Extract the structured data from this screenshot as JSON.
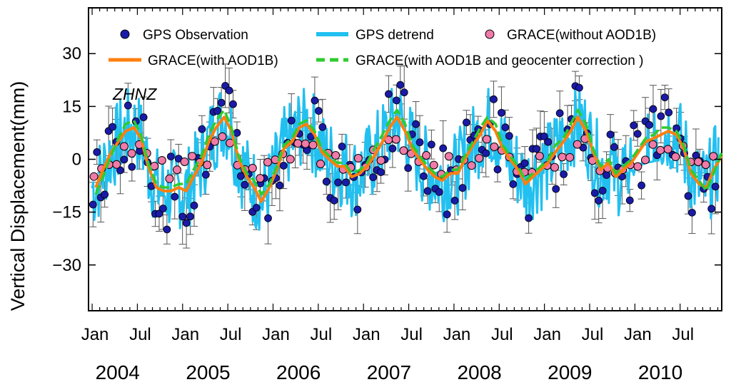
{
  "chart_data": {
    "type": "line",
    "station_label": "ZHNZ",
    "ylabel": "Vertical Displacement(mm)",
    "ylim": [
      -43,
      43
    ],
    "xlim": [
      2003.96,
      2010.96
    ],
    "yticks": [
      {
        "value": 30,
        "label": "30"
      },
      {
        "value": 15,
        "label": "15"
      },
      {
        "value": 0,
        "label": "0"
      },
      {
        "value": -15,
        "label": "−15"
      },
      {
        "value": -30,
        "label": "−30"
      }
    ],
    "month_ticks": [
      {
        "t": 2004.0,
        "label": "Jan"
      },
      {
        "t": 2004.5,
        "label": "Jul"
      },
      {
        "t": 2005.0,
        "label": "Jan"
      },
      {
        "t": 2005.5,
        "label": "Jul"
      },
      {
        "t": 2006.0,
        "label": "Jan"
      },
      {
        "t": 2006.5,
        "label": "Jul"
      },
      {
        "t": 2007.0,
        "label": "Jan"
      },
      {
        "t": 2007.5,
        "label": "Jul"
      },
      {
        "t": 2008.0,
        "label": "Jan"
      },
      {
        "t": 2008.5,
        "label": "Jul"
      },
      {
        "t": 2009.0,
        "label": "Jan"
      },
      {
        "t": 2009.5,
        "label": "Jul"
      },
      {
        "t": 2010.0,
        "label": "Jan"
      },
      {
        "t": 2010.5,
        "label": "Jul"
      }
    ],
    "year_labels": [
      {
        "t": 2004.25,
        "label": "2004"
      },
      {
        "t": 2005.25,
        "label": "2005"
      },
      {
        "t": 2006.25,
        "label": "2006"
      },
      {
        "t": 2007.25,
        "label": "2007"
      },
      {
        "t": 2008.25,
        "label": "2008"
      },
      {
        "t": 2009.25,
        "label": "2009"
      },
      {
        "t": 2010.25,
        "label": "2010"
      }
    ],
    "legend": [
      {
        "key": "gps_obs",
        "label": "GPS Observation"
      },
      {
        "key": "gps_detrend",
        "label": "GPS detrend"
      },
      {
        "key": "grace_no_aod",
        "label": "GRACE(without AOD1B)"
      },
      {
        "key": "grace_aod",
        "label": "GRACE(with AOD1B)"
      },
      {
        "key": "grace_aod_geo",
        "label": "GRACE(with AOD1B and geocenter correction )"
      }
    ],
    "colors": {
      "gps_obs": "#1a1aa8",
      "gps_detrend": "#22c0f0",
      "grace_no_aod": "#f07aa8",
      "grace_aod": "#ff7f0e",
      "grace_aod_geo": "#2ecc2e",
      "errorbar": "#555555"
    },
    "series": [
      {
        "name": "GRACE(with AOD1B)",
        "key": "grace_aod",
        "x": [
          2004.04,
          2004.12,
          2004.21,
          2004.29,
          2004.37,
          2004.46,
          2004.54,
          2004.62,
          2004.71,
          2004.79,
          2004.87,
          2004.96,
          2005.04,
          2005.12,
          2005.21,
          2005.29,
          2005.37,
          2005.46,
          2005.54,
          2005.62,
          2005.71,
          2005.79,
          2005.87,
          2005.96,
          2006.04,
          2006.12,
          2006.21,
          2006.29,
          2006.37,
          2006.46,
          2006.54,
          2006.62,
          2006.71,
          2006.79,
          2006.87,
          2006.96,
          2007.04,
          2007.12,
          2007.21,
          2007.29,
          2007.37,
          2007.46,
          2007.54,
          2007.62,
          2007.71,
          2007.79,
          2007.87,
          2007.96,
          2008.04,
          2008.12,
          2008.21,
          2008.29,
          2008.37,
          2008.46,
          2008.54,
          2008.62,
          2008.71,
          2008.79,
          2008.87,
          2008.96,
          2009.04,
          2009.12,
          2009.21,
          2009.29,
          2009.37,
          2009.46,
          2009.54,
          2009.62,
          2009.71,
          2009.79,
          2009.87,
          2009.96,
          2010.04,
          2010.12,
          2010.21,
          2010.29,
          2010.37,
          2010.46,
          2010.54,
          2010.62,
          2010.71,
          2010.79,
          2010.87,
          2010.96
        ],
        "values": [
          -8,
          -3,
          2,
          5,
          8,
          9,
          6,
          -2,
          -8,
          -9,
          -9,
          -8,
          -9,
          -5,
          -1,
          5,
          9,
          12,
          8,
          0,
          -5,
          -8,
          -12,
          -8,
          -3,
          3,
          5,
          9,
          10,
          7,
          2,
          0,
          -2,
          -2,
          -5,
          -4,
          -2,
          1,
          5,
          9,
          12,
          8,
          3,
          0,
          -3,
          -5,
          -6,
          -4,
          -4,
          0,
          4,
          7,
          11,
          8,
          3,
          0,
          -3,
          -7,
          -5,
          -3,
          -1,
          2,
          5,
          8,
          12,
          8,
          2,
          -3,
          -1,
          -5,
          -3,
          -1,
          2,
          5,
          6,
          7,
          8,
          7,
          3,
          -4,
          -7,
          -8,
          -3,
          1
        ]
      },
      {
        "name": "GRACE(with AOD1B and geocenter correction )",
        "key": "grace_aod_geo",
        "x": [
          2004.04,
          2004.12,
          2004.21,
          2004.29,
          2004.37,
          2004.46,
          2004.54,
          2004.62,
          2004.71,
          2004.79,
          2004.87,
          2004.96,
          2005.04,
          2005.12,
          2005.21,
          2005.29,
          2005.37,
          2005.46,
          2005.54,
          2005.62,
          2005.71,
          2005.79,
          2005.87,
          2005.96,
          2006.04,
          2006.12,
          2006.21,
          2006.29,
          2006.37,
          2006.46,
          2006.54,
          2006.62,
          2006.71,
          2006.79,
          2006.87,
          2006.96,
          2007.04,
          2007.12,
          2007.21,
          2007.29,
          2007.37,
          2007.46,
          2007.54,
          2007.62,
          2007.71,
          2007.79,
          2007.87,
          2007.96,
          2008.04,
          2008.12,
          2008.21,
          2008.29,
          2008.37,
          2008.46,
          2008.54,
          2008.62,
          2008.71,
          2008.79,
          2008.87,
          2008.96,
          2009.04,
          2009.12,
          2009.21,
          2009.29,
          2009.37,
          2009.46,
          2009.54,
          2009.62,
          2009.71,
          2009.79,
          2009.87,
          2009.96,
          2010.04,
          2010.12,
          2010.21,
          2010.29,
          2010.37,
          2010.46,
          2010.54,
          2010.62,
          2010.71,
          2010.79,
          2010.87,
          2010.96
        ],
        "values": [
          -10,
          -5,
          1,
          6,
          10,
          11,
          7,
          -1,
          -7,
          -8,
          -8,
          -7,
          -7,
          -3,
          1,
          7,
          11,
          14,
          9,
          1,
          -4,
          -6,
          -10,
          -7,
          -2,
          4,
          6,
          10,
          11,
          8,
          3,
          1,
          -1,
          -1,
          -4,
          -3,
          -1,
          3,
          7,
          11,
          14,
          10,
          4,
          1,
          -2,
          -4,
          -5,
          -3,
          -3,
          1,
          5,
          9,
          12,
          10,
          4,
          1,
          -2,
          -6,
          -4,
          -2,
          0,
          4,
          6,
          10,
          14,
          10,
          3,
          -2,
          0,
          -4,
          -2,
          0,
          3,
          6,
          7,
          9,
          9,
          8,
          4,
          -3,
          -6,
          -9,
          -4,
          2
        ]
      }
    ]
  }
}
